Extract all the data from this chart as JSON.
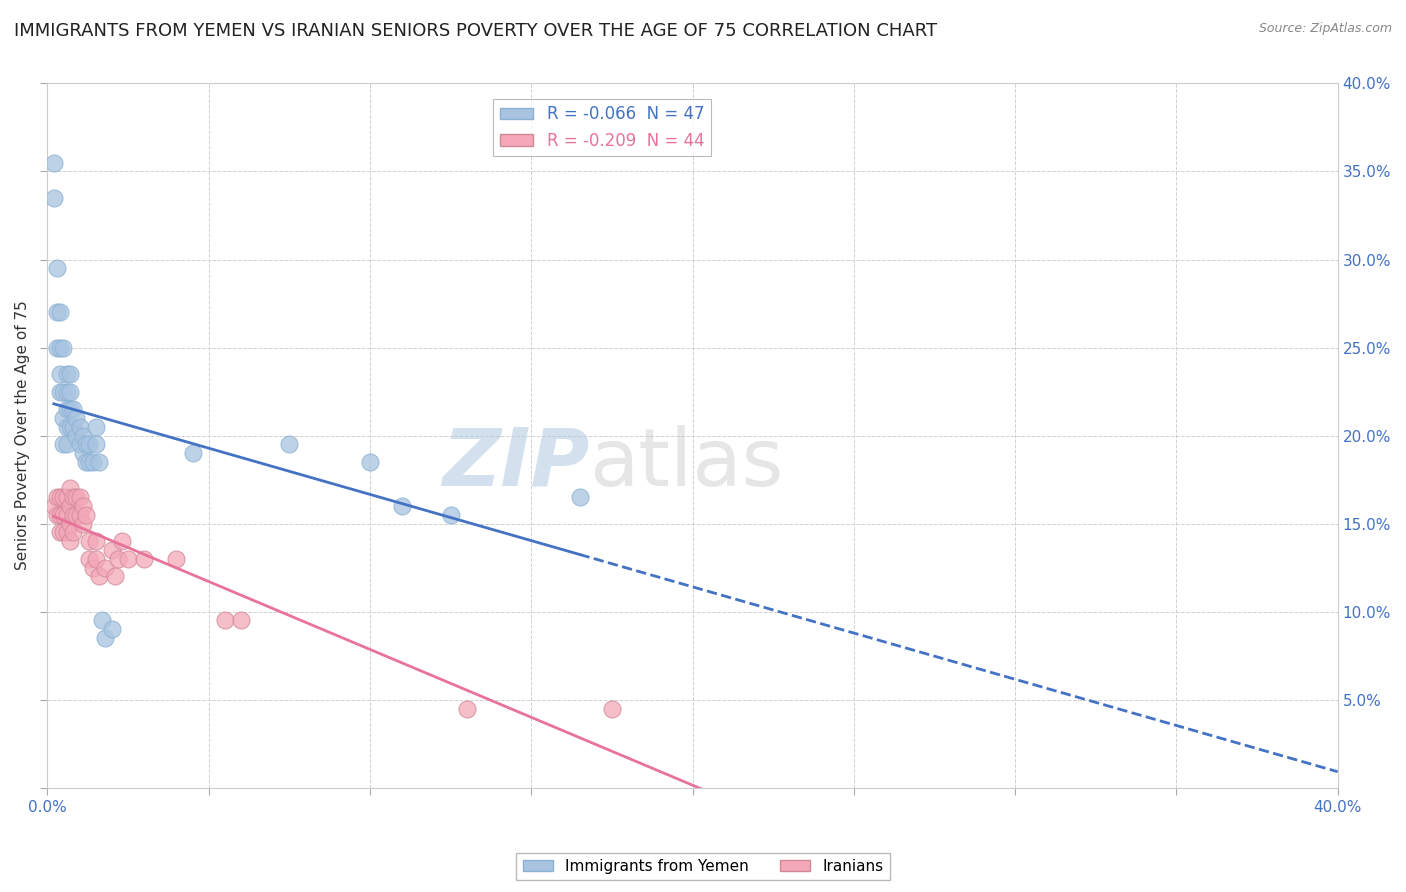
{
  "title": "IMMIGRANTS FROM YEMEN VS IRANIAN SENIORS POVERTY OVER THE AGE OF 75 CORRELATION CHART",
  "source": "Source: ZipAtlas.com",
  "ylabel": "Seniors Poverty Over the Age of 75",
  "xlim": [
    0.0,
    0.4
  ],
  "ylim": [
    0.0,
    0.4
  ],
  "legend_blue_r": -0.066,
  "legend_blue_n": 47,
  "legend_pink_r": -0.209,
  "legend_pink_n": 44,
  "blue_color": "#a8c4e0",
  "pink_color": "#f4a8b8",
  "blue_line_color": "#4472C4",
  "pink_line_color": "#E8739A",
  "watermark_zip": "ZIP",
  "watermark_atlas": "atlas",
  "blue_scatter_x": [
    0.002,
    0.002,
    0.003,
    0.003,
    0.003,
    0.004,
    0.004,
    0.004,
    0.004,
    0.005,
    0.005,
    0.005,
    0.005,
    0.006,
    0.006,
    0.006,
    0.006,
    0.006,
    0.007,
    0.007,
    0.007,
    0.007,
    0.008,
    0.008,
    0.009,
    0.009,
    0.01,
    0.01,
    0.011,
    0.011,
    0.012,
    0.012,
    0.013,
    0.013,
    0.014,
    0.015,
    0.015,
    0.016,
    0.017,
    0.018,
    0.02,
    0.045,
    0.075,
    0.1,
    0.11,
    0.125,
    0.165
  ],
  "blue_scatter_y": [
    0.355,
    0.335,
    0.295,
    0.27,
    0.25,
    0.27,
    0.25,
    0.235,
    0.225,
    0.25,
    0.225,
    0.21,
    0.195,
    0.235,
    0.225,
    0.215,
    0.205,
    0.195,
    0.235,
    0.225,
    0.215,
    0.205,
    0.215,
    0.205,
    0.21,
    0.2,
    0.205,
    0.195,
    0.2,
    0.19,
    0.195,
    0.185,
    0.195,
    0.185,
    0.185,
    0.205,
    0.195,
    0.185,
    0.095,
    0.085,
    0.09,
    0.19,
    0.195,
    0.185,
    0.16,
    0.155,
    0.165
  ],
  "pink_scatter_x": [
    0.002,
    0.003,
    0.003,
    0.004,
    0.004,
    0.004,
    0.005,
    0.005,
    0.005,
    0.006,
    0.006,
    0.006,
    0.007,
    0.007,
    0.007,
    0.007,
    0.008,
    0.008,
    0.008,
    0.009,
    0.009,
    0.01,
    0.01,
    0.011,
    0.011,
    0.012,
    0.013,
    0.013,
    0.014,
    0.015,
    0.015,
    0.016,
    0.018,
    0.02,
    0.021,
    0.022,
    0.023,
    0.025,
    0.03,
    0.04,
    0.055,
    0.06,
    0.13,
    0.175
  ],
  "pink_scatter_y": [
    0.16,
    0.165,
    0.155,
    0.165,
    0.155,
    0.145,
    0.165,
    0.155,
    0.145,
    0.165,
    0.155,
    0.145,
    0.17,
    0.16,
    0.15,
    0.14,
    0.165,
    0.155,
    0.145,
    0.165,
    0.155,
    0.165,
    0.155,
    0.16,
    0.15,
    0.155,
    0.14,
    0.13,
    0.125,
    0.14,
    0.13,
    0.12,
    0.125,
    0.135,
    0.12,
    0.13,
    0.14,
    0.13,
    0.13,
    0.13,
    0.095,
    0.095,
    0.045,
    0.045
  ],
  "background_color": "#ffffff",
  "grid_color": "#d0d0d0",
  "title_fontsize": 13,
  "label_fontsize": 11,
  "tick_fontsize": 11
}
